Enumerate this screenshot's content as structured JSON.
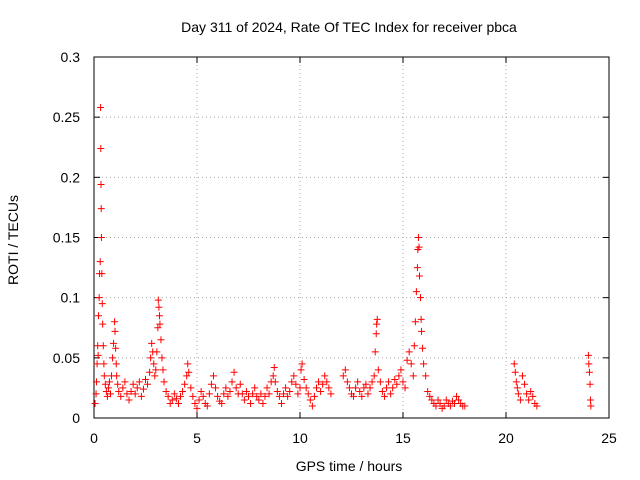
{
  "chart_data": {
    "type": "scatter",
    "title": "Day 311 of 2024, Rate Of TEC Index for receiver pbca",
    "xlabel": "GPS time / hours",
    "ylabel": "ROTI / TECUs",
    "xlim": [
      0,
      25
    ],
    "ylim": [
      0,
      0.3
    ],
    "xticks": [
      0,
      5,
      10,
      15,
      20,
      25
    ],
    "xtick_labels": [
      "0",
      "5",
      "10",
      "15",
      "20",
      "25"
    ],
    "yticks": [
      0,
      0.05,
      0.1,
      0.15,
      0.2,
      0.25,
      0.3
    ],
    "ytick_labels": [
      "0",
      "0.05",
      "0.1",
      "0.15",
      "0.2",
      "0.25",
      "0.3"
    ],
    "grid": true,
    "marker": "plus",
    "color": "#ff0000",
    "points": [
      [
        0.05,
        0.012
      ],
      [
        0.1,
        0.02
      ],
      [
        0.12,
        0.03
      ],
      [
        0.15,
        0.045
      ],
      [
        0.18,
        0.06
      ],
      [
        0.2,
        0.052
      ],
      [
        0.22,
        0.085
      ],
      [
        0.25,
        0.1
      ],
      [
        0.27,
        0.12
      ],
      [
        0.3,
        0.13
      ],
      [
        0.32,
        0.258
      ],
      [
        0.33,
        0.224
      ],
      [
        0.34,
        0.194
      ],
      [
        0.35,
        0.174
      ],
      [
        0.36,
        0.15
      ],
      [
        0.38,
        0.12
      ],
      [
        0.4,
        0.095
      ],
      [
        0.42,
        0.078
      ],
      [
        0.45,
        0.06
      ],
      [
        0.48,
        0.045
      ],
      [
        0.5,
        0.035
      ],
      [
        0.55,
        0.028
      ],
      [
        0.6,
        0.022
      ],
      [
        0.65,
        0.018
      ],
      [
        0.7,
        0.025
      ],
      [
        0.75,
        0.03
      ],
      [
        0.8,
        0.02
      ],
      [
        0.85,
        0.035
      ],
      [
        0.9,
        0.05
      ],
      [
        0.95,
        0.062
      ],
      [
        1.0,
        0.08
      ],
      [
        1.02,
        0.072
      ],
      [
        1.05,
        0.058
      ],
      [
        1.08,
        0.045
      ],
      [
        1.1,
        0.035
      ],
      [
        1.15,
        0.028
      ],
      [
        1.2,
        0.022
      ],
      [
        1.3,
        0.018
      ],
      [
        1.4,
        0.025
      ],
      [
        1.5,
        0.03
      ],
      [
        1.6,
        0.02
      ],
      [
        1.7,
        0.015
      ],
      [
        1.8,
        0.022
      ],
      [
        1.9,
        0.028
      ],
      [
        2.0,
        0.02
      ],
      [
        2.1,
        0.025
      ],
      [
        2.2,
        0.03
      ],
      [
        2.3,
        0.018
      ],
      [
        2.4,
        0.024
      ],
      [
        2.5,
        0.032
      ],
      [
        2.6,
        0.028
      ],
      [
        2.7,
        0.038
      ],
      [
        2.75,
        0.05
      ],
      [
        2.8,
        0.062
      ],
      [
        2.85,
        0.055
      ],
      [
        2.9,
        0.045
      ],
      [
        2.95,
        0.035
      ],
      [
        3.0,
        0.04
      ],
      [
        3.05,
        0.055
      ],
      [
        3.1,
        0.075
      ],
      [
        3.12,
        0.098
      ],
      [
        3.15,
        0.092
      ],
      [
        3.18,
        0.085
      ],
      [
        3.2,
        0.078
      ],
      [
        3.25,
        0.065
      ],
      [
        3.3,
        0.05
      ],
      [
        3.35,
        0.04
      ],
      [
        3.4,
        0.03
      ],
      [
        3.5,
        0.022
      ],
      [
        3.6,
        0.018
      ],
      [
        3.7,
        0.012
      ],
      [
        3.8,
        0.015
      ],
      [
        3.9,
        0.02
      ],
      [
        4.0,
        0.016
      ],
      [
        4.1,
        0.012
      ],
      [
        4.2,
        0.018
      ],
      [
        4.3,
        0.022
      ],
      [
        4.4,
        0.028
      ],
      [
        4.5,
        0.035
      ],
      [
        4.55,
        0.045
      ],
      [
        4.6,
        0.038
      ],
      [
        4.7,
        0.025
      ],
      [
        4.8,
        0.018
      ],
      [
        4.9,
        0.012
      ],
      [
        5.0,
        0.008
      ],
      [
        5.1,
        0.015
      ],
      [
        5.2,
        0.022
      ],
      [
        5.3,
        0.018
      ],
      [
        5.4,
        0.012
      ],
      [
        5.5,
        0.01
      ],
      [
        5.6,
        0.02
      ],
      [
        5.7,
        0.028
      ],
      [
        5.8,
        0.035
      ],
      [
        5.9,
        0.025
      ],
      [
        6.0,
        0.018
      ],
      [
        6.1,
        0.014
      ],
      [
        6.2,
        0.012
      ],
      [
        6.3,
        0.02
      ],
      [
        6.4,
        0.025
      ],
      [
        6.5,
        0.018
      ],
      [
        6.6,
        0.022
      ],
      [
        6.7,
        0.03
      ],
      [
        6.8,
        0.038
      ],
      [
        6.9,
        0.025
      ],
      [
        7.0,
        0.02
      ],
      [
        7.1,
        0.028
      ],
      [
        7.2,
        0.02
      ],
      [
        7.3,
        0.015
      ],
      [
        7.4,
        0.022
      ],
      [
        7.5,
        0.018
      ],
      [
        7.6,
        0.012
      ],
      [
        7.7,
        0.02
      ],
      [
        7.8,
        0.025
      ],
      [
        7.9,
        0.018
      ],
      [
        8.0,
        0.015
      ],
      [
        8.1,
        0.02
      ],
      [
        8.2,
        0.012
      ],
      [
        8.3,
        0.018
      ],
      [
        8.4,
        0.025
      ],
      [
        8.5,
        0.02
      ],
      [
        8.6,
        0.03
      ],
      [
        8.7,
        0.035
      ],
      [
        8.75,
        0.042
      ],
      [
        8.8,
        0.03
      ],
      [
        8.9,
        0.022
      ],
      [
        9.0,
        0.018
      ],
      [
        9.1,
        0.012
      ],
      [
        9.2,
        0.02
      ],
      [
        9.3,
        0.025
      ],
      [
        9.4,
        0.018
      ],
      [
        9.5,
        0.022
      ],
      [
        9.6,
        0.03
      ],
      [
        9.7,
        0.035
      ],
      [
        9.8,
        0.028
      ],
      [
        9.9,
        0.02
      ],
      [
        10.0,
        0.025
      ],
      [
        10.05,
        0.04
      ],
      [
        10.1,
        0.045
      ],
      [
        10.2,
        0.032
      ],
      [
        10.3,
        0.025
      ],
      [
        10.4,
        0.02
      ],
      [
        10.5,
        0.015
      ],
      [
        10.6,
        0.01
      ],
      [
        10.7,
        0.018
      ],
      [
        10.8,
        0.025
      ],
      [
        10.9,
        0.03
      ],
      [
        11.0,
        0.022
      ],
      [
        11.1,
        0.028
      ],
      [
        11.2,
        0.035
      ],
      [
        11.3,
        0.03
      ],
      [
        11.4,
        0.025
      ],
      [
        11.5,
        0.02
      ],
      [
        12.1,
        0.035
      ],
      [
        12.2,
        0.04
      ],
      [
        12.3,
        0.03
      ],
      [
        12.4,
        0.025
      ],
      [
        12.5,
        0.02
      ],
      [
        12.6,
        0.018
      ],
      [
        12.7,
        0.025
      ],
      [
        12.8,
        0.03
      ],
      [
        12.9,
        0.022
      ],
      [
        13.0,
        0.018
      ],
      [
        13.1,
        0.025
      ],
      [
        13.2,
        0.028
      ],
      [
        13.3,
        0.02
      ],
      [
        13.4,
        0.025
      ],
      [
        13.5,
        0.03
      ],
      [
        13.6,
        0.035
      ],
      [
        13.65,
        0.055
      ],
      [
        13.7,
        0.07
      ],
      [
        13.72,
        0.078
      ],
      [
        13.75,
        0.082
      ],
      [
        13.8,
        0.04
      ],
      [
        13.9,
        0.03
      ],
      [
        14.0,
        0.022
      ],
      [
        14.1,
        0.018
      ],
      [
        14.2,
        0.025
      ],
      [
        14.3,
        0.03
      ],
      [
        14.4,
        0.02
      ],
      [
        14.5,
        0.025
      ],
      [
        14.6,
        0.032
      ],
      [
        14.7,
        0.028
      ],
      [
        14.8,
        0.035
      ],
      [
        14.9,
        0.04
      ],
      [
        15.0,
        0.03
      ],
      [
        15.1,
        0.025
      ],
      [
        15.2,
        0.048
      ],
      [
        15.3,
        0.055
      ],
      [
        15.4,
        0.045
      ],
      [
        15.5,
        0.035
      ],
      [
        15.55,
        0.06
      ],
      [
        15.6,
        0.08
      ],
      [
        15.65,
        0.105
      ],
      [
        15.7,
        0.125
      ],
      [
        15.72,
        0.14
      ],
      [
        15.75,
        0.15
      ],
      [
        15.78,
        0.142
      ],
      [
        15.8,
        0.118
      ],
      [
        15.85,
        0.1
      ],
      [
        15.88,
        0.082
      ],
      [
        15.9,
        0.072
      ],
      [
        15.95,
        0.058
      ],
      [
        16.0,
        0.045
      ],
      [
        16.1,
        0.035
      ],
      [
        16.2,
        0.022
      ],
      [
        16.3,
        0.018
      ],
      [
        16.4,
        0.015
      ],
      [
        16.5,
        0.012
      ],
      [
        16.6,
        0.01
      ],
      [
        16.7,
        0.015
      ],
      [
        16.8,
        0.012
      ],
      [
        16.9,
        0.008
      ],
      [
        17.0,
        0.01
      ],
      [
        17.1,
        0.015
      ],
      [
        17.2,
        0.012
      ],
      [
        17.3,
        0.01
      ],
      [
        17.4,
        0.014
      ],
      [
        17.5,
        0.012
      ],
      [
        17.6,
        0.018
      ],
      [
        17.7,
        0.015
      ],
      [
        17.8,
        0.012
      ],
      [
        17.9,
        0.01
      ],
      [
        18.0,
        0.01
      ],
      [
        20.4,
        0.045
      ],
      [
        20.45,
        0.038
      ],
      [
        20.5,
        0.03
      ],
      [
        20.55,
        0.025
      ],
      [
        20.6,
        0.02
      ],
      [
        20.7,
        0.015
      ],
      [
        20.8,
        0.035
      ],
      [
        20.9,
        0.028
      ],
      [
        21.0,
        0.02
      ],
      [
        21.1,
        0.015
      ],
      [
        21.2,
        0.022
      ],
      [
        21.3,
        0.018
      ],
      [
        21.4,
        0.012
      ],
      [
        21.5,
        0.01
      ],
      [
        24.0,
        0.052
      ],
      [
        24.02,
        0.045
      ],
      [
        24.05,
        0.038
      ],
      [
        24.08,
        0.028
      ],
      [
        24.1,
        0.015
      ],
      [
        24.12,
        0.01
      ]
    ]
  }
}
